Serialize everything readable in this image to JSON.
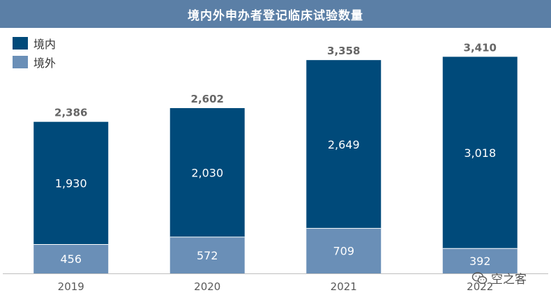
{
  "title": "境内外申办者登记临床试验数量",
  "legend": [
    {
      "label": "境内",
      "color": "#004a7a"
    },
    {
      "label": "境外",
      "color": "#6a8fb7"
    }
  ],
  "watermark": {
    "text": "空之客",
    "icon": "wechat-icon"
  },
  "colors": {
    "domestic": "#004a7a",
    "foreign": "#6a8fb7",
    "axis": "#bfbfbf",
    "total_label": "#666666",
    "tick_label": "#595959"
  },
  "chart_data": {
    "type": "bar",
    "stacked": true,
    "title": "境内外申办者登记临床试验数量",
    "categories": [
      "2019",
      "2020",
      "2021",
      "2022"
    ],
    "series": [
      {
        "name": "境外",
        "values": [
          456,
          572,
          709,
          392
        ]
      },
      {
        "name": "境内",
        "values": [
          1930,
          2030,
          2649,
          3018
        ]
      }
    ],
    "totals": [
      2386,
      2602,
      3358,
      3410
    ],
    "value_labels": {
      "domestic": [
        "1,930",
        "2,030",
        "2,649",
        "3,018"
      ],
      "foreign": [
        "456",
        "572",
        "709",
        "392"
      ],
      "totals": [
        "2,386",
        "2,602",
        "3,358",
        "3,410"
      ]
    },
    "ylim": [
      0,
      3700
    ],
    "grid": false,
    "legend_position": "top-left",
    "xlabel": "",
    "ylabel": ""
  }
}
